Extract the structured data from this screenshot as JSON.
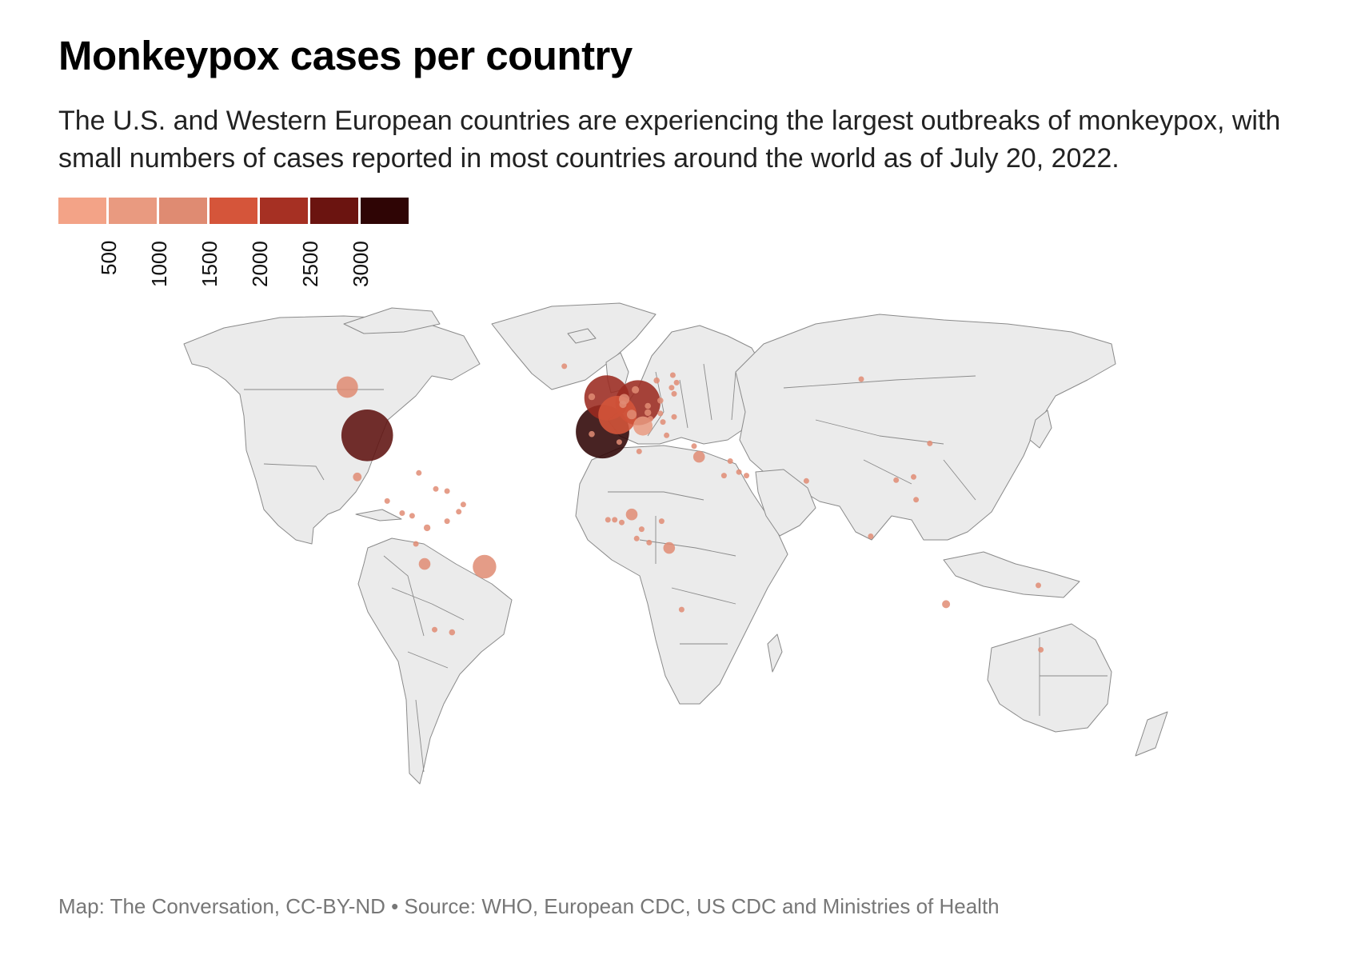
{
  "title": "Monkeypox cases per country",
  "subtitle": "The U.S. and Western European countries are experiencing the largest outbreaks of monkeypox, with small numbers of cases reported in most countries around the world as of July 20, 2022.",
  "footer": "Map: The Conversation, CC-BY-ND • Source: WHO, European CDC, US CDC and Ministries of Health",
  "legend": {
    "colors": [
      "#f3a387",
      "#e99a80",
      "#df8b72",
      "#d5553a",
      "#a63023",
      "#6b1410",
      "#2f0505"
    ],
    "ticks": [
      "500",
      "1000",
      "1500",
      "2000",
      "2500",
      "3000"
    ]
  },
  "colors": {
    "land": "#ebebeb",
    "border": "#8a8a8a",
    "background": "#ffffff"
  },
  "bubbles": [
    {
      "lon": -98,
      "lat": 39,
      "size": 2900,
      "color": "#5e1210"
    },
    {
      "lon": -3.7,
      "lat": 40.4,
      "size": 3100,
      "color": "#2f0505"
    },
    {
      "lon": 10.5,
      "lat": 51.2,
      "size": 2200,
      "color": "#9b2a20"
    },
    {
      "lon": -2,
      "lat": 53,
      "size": 2200,
      "color": "#9b2a20"
    },
    {
      "lon": 2.3,
      "lat": 46.6,
      "size": 1600,
      "color": "#d5553a"
    },
    {
      "lon": -106,
      "lat": 57,
      "size": 500,
      "color": "#df8b72"
    },
    {
      "lon": -51,
      "lat": -10,
      "size": 600,
      "color": "#df8b72"
    },
    {
      "lon": 12.5,
      "lat": 42.5,
      "size": 400,
      "color": "#e99a80"
    },
    {
      "lon": 8,
      "lat": 9.5,
      "size": 150,
      "color": "#e18c74"
    },
    {
      "lon": 23,
      "lat": -3,
      "size": 150,
      "color": "#e18c74"
    },
    {
      "lon": -75,
      "lat": -9,
      "size": 150,
      "color": "#e18c74"
    },
    {
      "lon": 35,
      "lat": 31,
      "size": 150,
      "color": "#e18c74"
    },
    {
      "lon": 5,
      "lat": 52.5,
      "size": 120,
      "color": "#e18c74"
    },
    {
      "lon": 8,
      "lat": 46.8,
      "size": 100,
      "color": "#e18c74"
    },
    {
      "lon": -102,
      "lat": 23.5,
      "size": 80,
      "color": "#e18c74"
    },
    {
      "lon": 134,
      "lat": -24,
      "size": 70,
      "color": "#e18c74"
    },
    {
      "lon": 9.5,
      "lat": 56,
      "size": 60,
      "color": "#e18c74"
    },
    {
      "lon": 4.5,
      "lat": 50.6,
      "size": 60,
      "color": "#e18c74"
    },
    {
      "lon": 14.5,
      "lat": 47.5,
      "size": 50,
      "color": "#e18c74"
    },
    {
      "lon": 14.5,
      "lat": 50,
      "size": 40,
      "color": "#e18c74"
    },
    {
      "lon": 19.5,
      "lat": 52,
      "size": 40,
      "color": "#e18c74"
    },
    {
      "lon": 19.5,
      "lat": 47.2,
      "size": 30,
      "color": "#e18c74"
    },
    {
      "lon": 25,
      "lat": 45.9,
      "size": 30,
      "color": "#e18c74"
    },
    {
      "lon": -8,
      "lat": 53.4,
      "size": 50,
      "color": "#e18c74"
    },
    {
      "lon": -8,
      "lat": 39.5,
      "size": 40,
      "color": "#e18c74"
    },
    {
      "lon": 3,
      "lat": 36.5,
      "size": 30,
      "color": "#e18c74"
    },
    {
      "lon": 11,
      "lat": 33,
      "size": 30,
      "color": "#e18c74"
    },
    {
      "lon": 15.5,
      "lat": 45.2,
      "size": 30,
      "color": "#e18c74"
    },
    {
      "lon": 20.5,
      "lat": 44,
      "size": 30,
      "color": "#e18c74"
    },
    {
      "lon": 22,
      "lat": 39,
      "size": 30,
      "color": "#e18c74"
    },
    {
      "lon": 33,
      "lat": 35,
      "size": 25,
      "color": "#e18c74"
    },
    {
      "lon": 18,
      "lat": 59.5,
      "size": 40,
      "color": "#e18c74"
    },
    {
      "lon": 24.5,
      "lat": 61.5,
      "size": 30,
      "color": "#e18c74"
    },
    {
      "lon": 24,
      "lat": 56.8,
      "size": 25,
      "color": "#e18c74"
    },
    {
      "lon": 25,
      "lat": 54.5,
      "size": 25,
      "color": "#e18c74"
    },
    {
      "lon": 26,
      "lat": 58.7,
      "size": 25,
      "color": "#e18c74"
    },
    {
      "lon": -19,
      "lat": 64.8,
      "size": 25,
      "color": "#e18c74"
    },
    {
      "lon": 100,
      "lat": 60,
      "size": 25,
      "color": "#e18c74"
    },
    {
      "lon": 45,
      "lat": 24,
      "size": 25,
      "color": "#e18c74"
    },
    {
      "lon": 54,
      "lat": 24,
      "size": 25,
      "color": "#e18c74"
    },
    {
      "lon": 51,
      "lat": 25.3,
      "size": 25,
      "color": "#e18c74"
    },
    {
      "lon": 78,
      "lat": 22,
      "size": 30,
      "color": "#e18c74"
    },
    {
      "lon": 122,
      "lat": 15,
      "size": 25,
      "color": "#e18c74"
    },
    {
      "lon": 103.8,
      "lat": 1.35,
      "size": 25,
      "color": "#e18c74"
    },
    {
      "lon": 114,
      "lat": 22.3,
      "size": 25,
      "color": "#e18c74"
    },
    {
      "lon": 121,
      "lat": 23.5,
      "size": 25,
      "color": "#e18c74"
    },
    {
      "lon": 127.5,
      "lat": 36,
      "size": 25,
      "color": "#e18c74"
    },
    {
      "lon": 172,
      "lat": -41,
      "size": 25,
      "color": "#e18c74"
    },
    {
      "lon": 171,
      "lat": -17,
      "size": 20,
      "color": "#e18c74"
    },
    {
      "lon": -71,
      "lat": -33.5,
      "size": 30,
      "color": "#e18c74"
    },
    {
      "lon": -64,
      "lat": -34.5,
      "size": 40,
      "color": "#e18c74"
    },
    {
      "lon": -74,
      "lat": 4.5,
      "size": 50,
      "color": "#e18c74"
    },
    {
      "lon": -66,
      "lat": 7,
      "size": 25,
      "color": "#e18c74"
    },
    {
      "lon": -78.5,
      "lat": -1.5,
      "size": 25,
      "color": "#e18c74"
    },
    {
      "lon": -66,
      "lat": 18.2,
      "size": 25,
      "color": "#e18c74"
    },
    {
      "lon": -77.3,
      "lat": 25,
      "size": 20,
      "color": "#e18c74"
    },
    {
      "lon": -70.5,
      "lat": 19,
      "size": 20,
      "color": "#e18c74"
    },
    {
      "lon": -84,
      "lat": 10,
      "size": 20,
      "color": "#e18c74"
    },
    {
      "lon": -80,
      "lat": 9,
      "size": 20,
      "color": "#e18c74"
    },
    {
      "lon": -61.3,
      "lat": 10.5,
      "size": 20,
      "color": "#e18c74"
    },
    {
      "lon": -59.5,
      "lat": 13.2,
      "size": 20,
      "color": "#e18c74"
    },
    {
      "lon": -90,
      "lat": 14.5,
      "size": 20,
      "color": "#e18c74"
    },
    {
      "lon": 4,
      "lat": 6.5,
      "size": 30,
      "color": "#e18c74"
    },
    {
      "lon": 1.2,
      "lat": 7.5,
      "size": 30,
      "color": "#e18c74"
    },
    {
      "lon": 12,
      "lat": 4,
      "size": 30,
      "color": "#e18c74"
    },
    {
      "lon": 10,
      "lat": 0.5,
      "size": 25,
      "color": "#e18c74"
    },
    {
      "lon": 20,
      "lat": 7,
      "size": 25,
      "color": "#e18c74"
    },
    {
      "lon": 15,
      "lat": -1,
      "size": 25,
      "color": "#e18c74"
    },
    {
      "lon": -1.5,
      "lat": 7.5,
      "size": 30,
      "color": "#e18c74"
    },
    {
      "lon": 28,
      "lat": -26,
      "size": 25,
      "color": "#e18c74"
    },
    {
      "lon": 47.5,
      "lat": 29.4,
      "size": 20,
      "color": "#e18c74"
    }
  ]
}
